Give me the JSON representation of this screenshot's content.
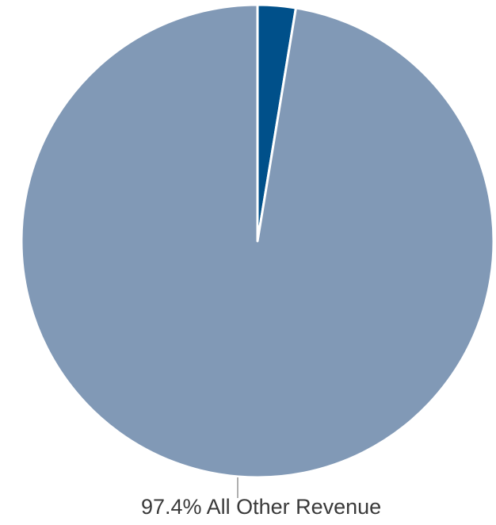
{
  "chart_data": {
    "type": "pie",
    "slices": [
      {
        "label": "",
        "value": 2.6,
        "color": "#00508a"
      },
      {
        "label": "All Other Revenue",
        "value": 97.4,
        "color": "#8199b6"
      }
    ],
    "data_labels": [
      {
        "text": "97.4% All Other Revenue",
        "slice_index": 1
      }
    ],
    "legend": "none"
  }
}
